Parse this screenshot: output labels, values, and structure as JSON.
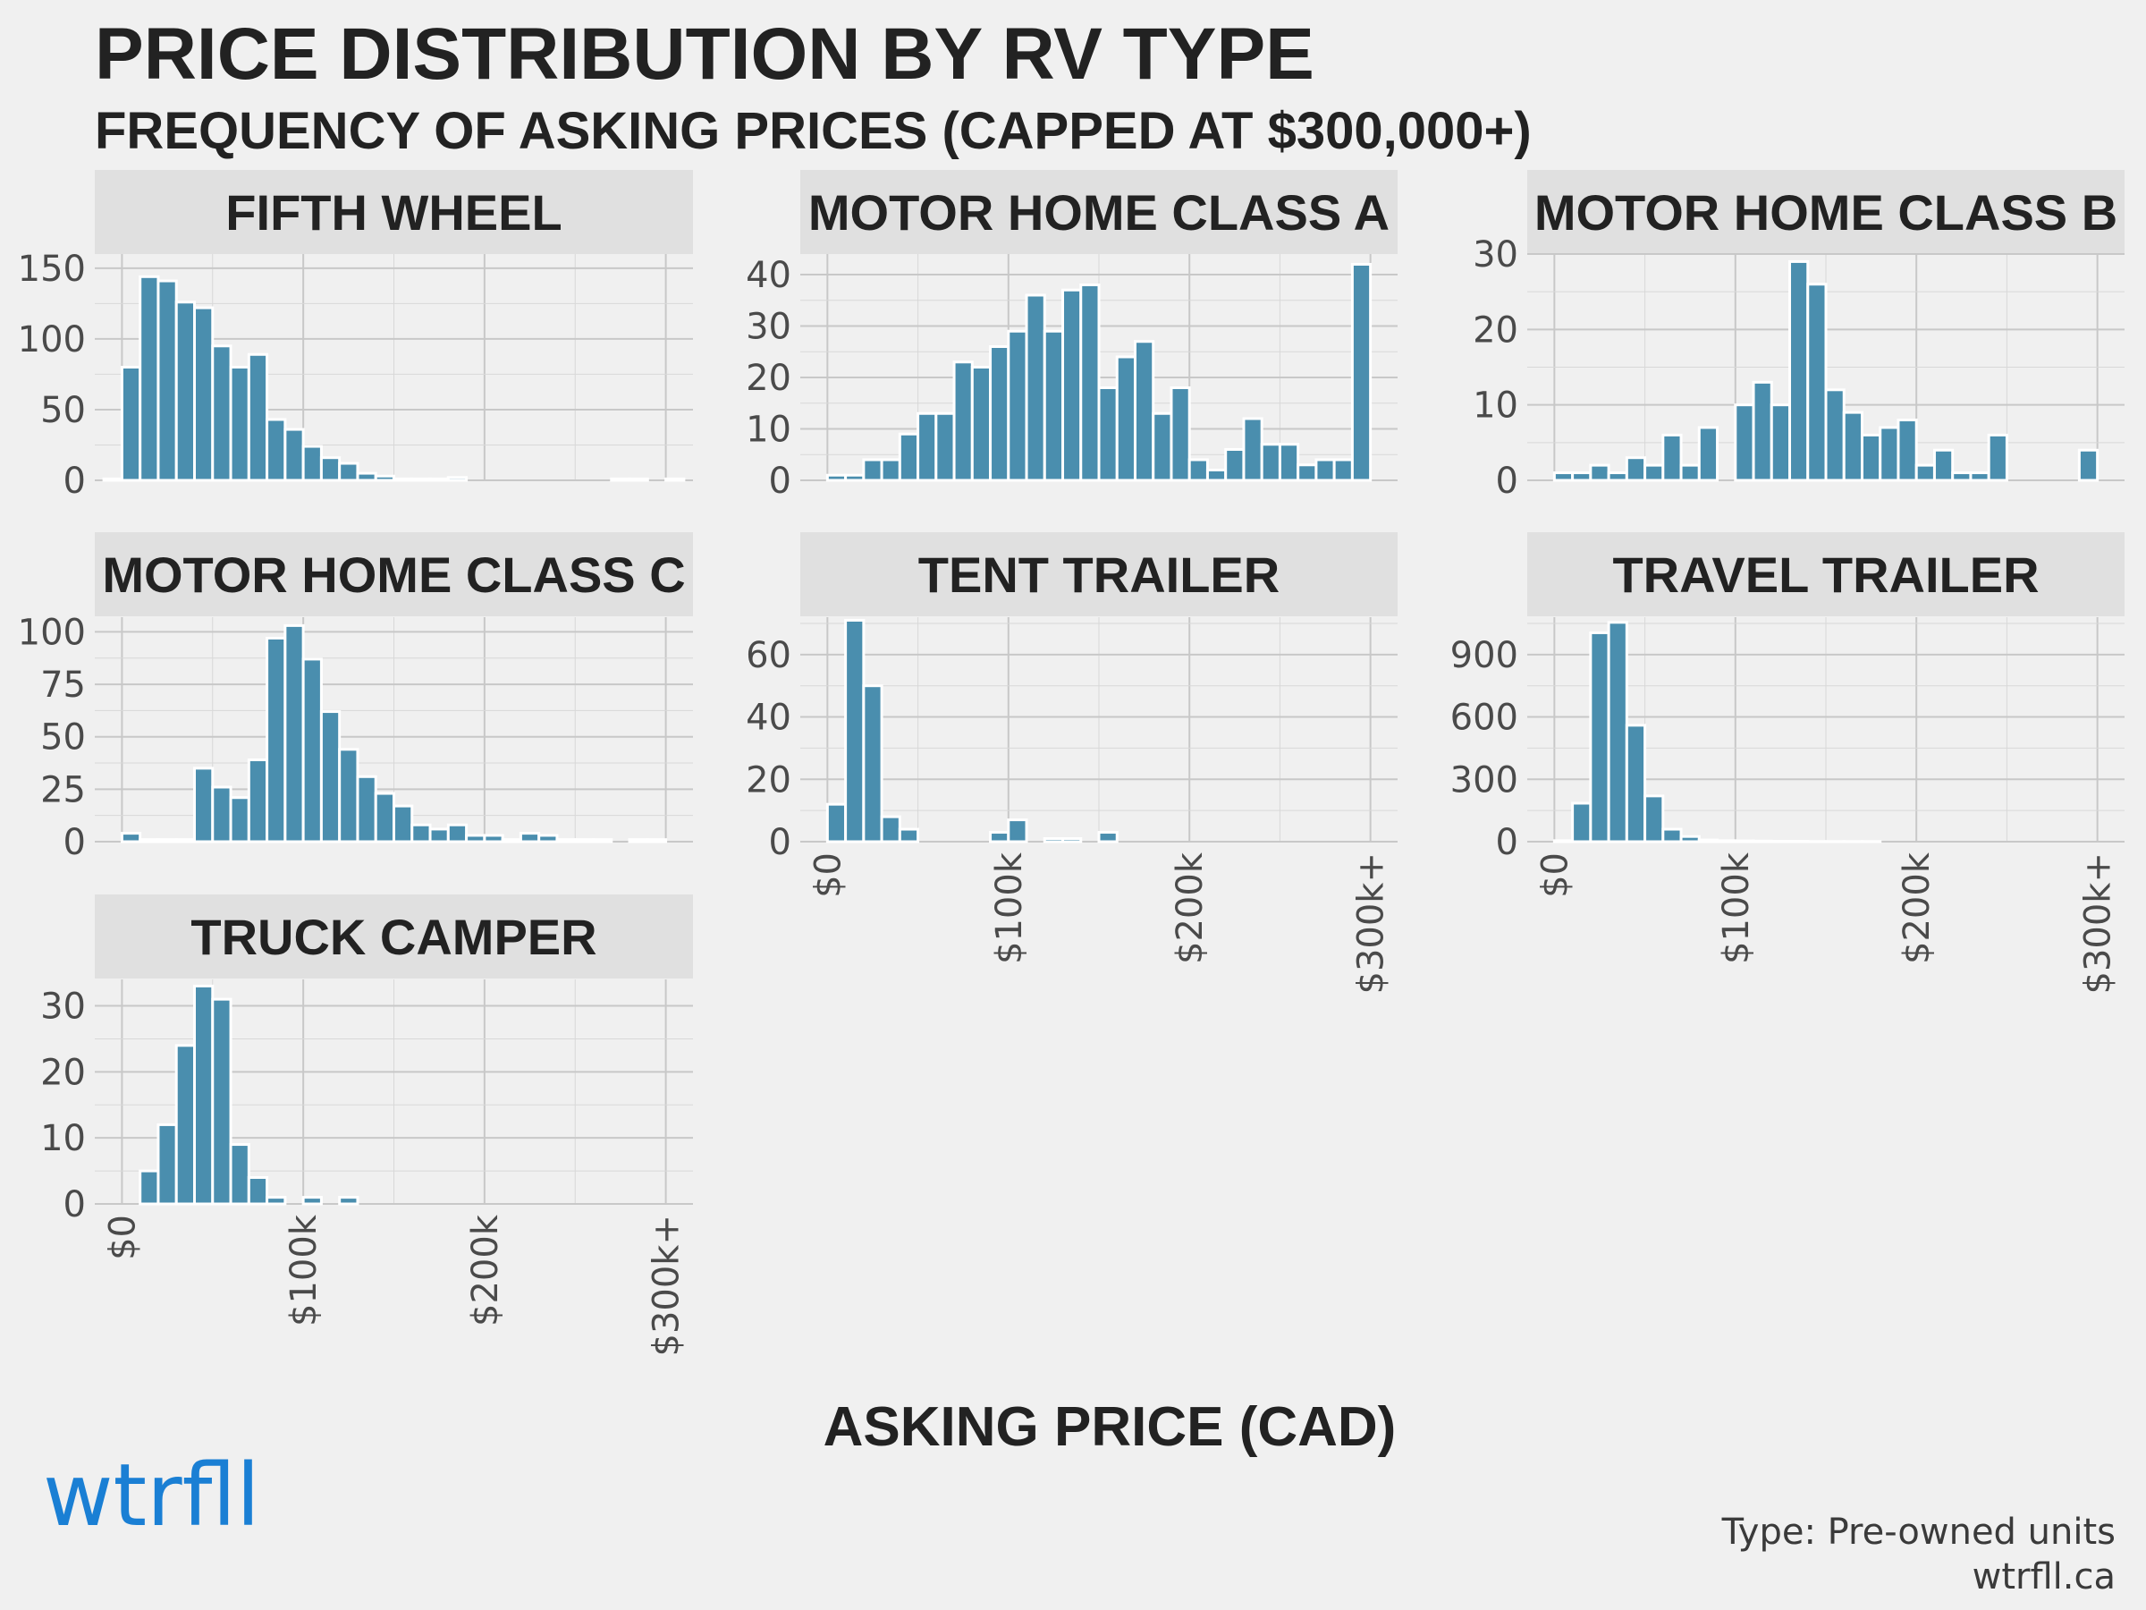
{
  "title": "PRICE DISTRIBUTION BY RV TYPE",
  "subtitle": "FREQUENCY OF ASKING PRICES (CAPPED AT $300,000+)",
  "xlabel": "ASKING PRICE (CAD)",
  "logo": "wtrfll",
  "caption": {
    "line1": "Type: Pre-owned units",
    "line2": "wtrfll.ca"
  },
  "colors": {
    "background": "#f0f0f0",
    "strip": "#e0e0e0",
    "bar_fill": "#4a8eae",
    "bar_stroke": "#ffffff",
    "grid_major": "#c8c8c8",
    "grid_minor": "#d8d8d8",
    "logo": "#1a7fd4"
  },
  "chart_data": {
    "type": "bar",
    "subtype": "faceted-histogram",
    "x_tick_labels": [
      "$0",
      "$100k",
      "$200k",
      "$300k+"
    ],
    "x_tick_values": [
      0,
      100000,
      200000,
      300000
    ],
    "bin_width": 10000,
    "bin_centers": [
      -5000,
      5000,
      15000,
      25000,
      35000,
      45000,
      55000,
      65000,
      75000,
      85000,
      95000,
      105000,
      115000,
      125000,
      135000,
      145000,
      155000,
      165000,
      175000,
      185000,
      195000,
      205000,
      215000,
      225000,
      235000,
      245000,
      255000,
      265000,
      275000,
      285000,
      295000,
      305000
    ],
    "xlim": [
      -15000,
      315000
    ],
    "facets": [
      {
        "name": "FIFTH WHEEL",
        "ylim": [
          0,
          160
        ],
        "y_ticks": [
          0,
          50,
          100,
          150
        ],
        "values": [
          1,
          80,
          144,
          141,
          126,
          122,
          95,
          80,
          89,
          43,
          36,
          24,
          16,
          12,
          5,
          3,
          1,
          1,
          1,
          2,
          0,
          0,
          0,
          0,
          0,
          0,
          0,
          0,
          1,
          1,
          0,
          1
        ]
      },
      {
        "name": "MOTOR HOME CLASS A",
        "ylim": [
          0,
          44
        ],
        "y_ticks": [
          0,
          10,
          20,
          30,
          40
        ],
        "values": [
          0,
          1,
          1,
          4,
          4,
          9,
          13,
          13,
          23,
          22,
          26,
          29,
          36,
          29,
          37,
          38,
          18,
          24,
          27,
          13,
          18,
          4,
          2,
          6,
          12,
          7,
          7,
          3,
          4,
          4,
          42,
          0
        ]
      },
      {
        "name": "MOTOR HOME CLASS B",
        "ylim": [
          0,
          30
        ],
        "y_ticks": [
          0,
          10,
          20,
          30
        ],
        "values": [
          0,
          1,
          1,
          2,
          1,
          3,
          2,
          6,
          2,
          7,
          0,
          10,
          13,
          10,
          29,
          26,
          12,
          9,
          6,
          7,
          8,
          2,
          4,
          1,
          1,
          6,
          0,
          0,
          0,
          0,
          4,
          0
        ]
      },
      {
        "name": "MOTOR HOME CLASS C",
        "ylim": [
          0,
          107
        ],
        "y_ticks": [
          0,
          25,
          50,
          75,
          100
        ],
        "values": [
          0,
          4,
          1,
          1,
          1,
          35,
          26,
          21,
          39,
          97,
          103,
          87,
          62,
          44,
          31,
          23,
          17,
          8,
          6,
          8,
          3,
          3,
          1,
          4,
          3,
          1,
          1,
          1,
          0,
          1,
          1,
          0
        ]
      },
      {
        "name": "TENT TRAILER",
        "ylim": [
          0,
          72
        ],
        "y_ticks": [
          0,
          20,
          40,
          60
        ],
        "values": [
          0,
          12,
          71,
          50,
          8,
          4,
          0,
          0,
          0,
          0,
          3,
          7,
          0,
          1,
          1,
          0,
          3,
          0,
          0,
          0,
          0,
          0,
          0,
          0,
          0,
          0,
          0,
          0,
          0,
          0,
          0,
          0
        ]
      },
      {
        "name": "TRAVEL TRAILER",
        "ylim": [
          0,
          1080
        ],
        "y_ticks": [
          0,
          300,
          600,
          900
        ],
        "y_tick_labels": [
          "0",
          "300",
          "600",
          "900"
        ],
        "values": [
          0,
          5,
          185,
          1005,
          1055,
          560,
          220,
          60,
          25,
          8,
          5,
          4,
          3,
          2,
          2,
          1,
          1,
          1,
          1,
          0,
          0,
          0,
          0,
          0,
          0,
          0,
          0,
          0,
          0,
          0,
          0,
          0
        ]
      },
      {
        "name": "TRUCK CAMPER",
        "ylim": [
          0,
          34
        ],
        "y_ticks": [
          0,
          10,
          20,
          30
        ],
        "values": [
          0,
          0,
          5,
          12,
          24,
          33,
          31,
          9,
          4,
          1,
          0,
          1,
          0,
          1,
          0,
          0,
          0,
          0,
          0,
          0,
          0,
          0,
          0,
          0,
          0,
          0,
          0,
          0,
          0,
          0,
          0,
          0
        ]
      }
    ]
  }
}
